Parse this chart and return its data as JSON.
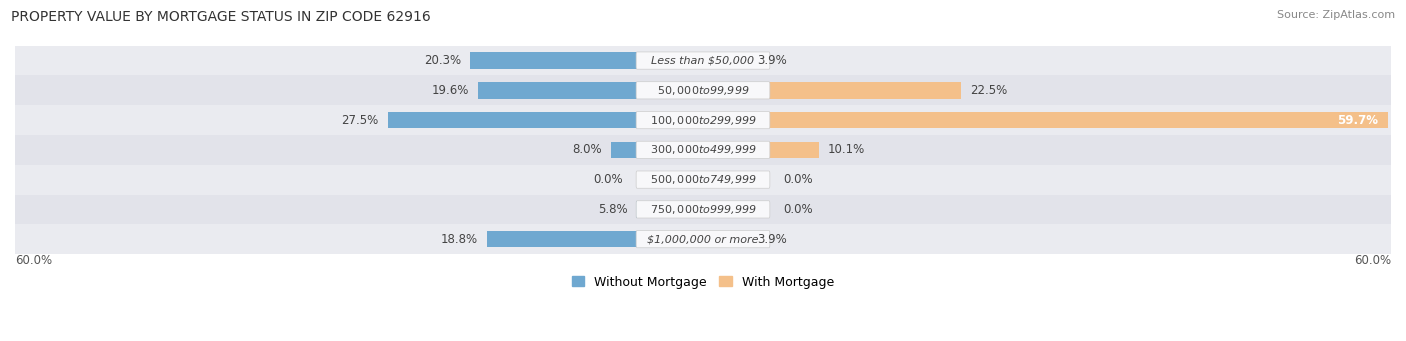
{
  "title": "PROPERTY VALUE BY MORTGAGE STATUS IN ZIP CODE 62916",
  "source": "Source: ZipAtlas.com",
  "categories": [
    "Less than $50,000",
    "$50,000 to $99,999",
    "$100,000 to $299,999",
    "$300,000 to $499,999",
    "$500,000 to $749,999",
    "$750,000 to $999,999",
    "$1,000,000 or more"
  ],
  "without_mortgage": [
    20.3,
    19.6,
    27.5,
    8.0,
    0.0,
    5.8,
    18.8
  ],
  "with_mortgage": [
    3.9,
    22.5,
    59.7,
    10.1,
    0.0,
    0.0,
    3.9
  ],
  "without_mortgage_color": "#6fa8d0",
  "with_mortgage_color": "#f4c08a",
  "axis_limit": 60.0,
  "axis_label_left": "60.0%",
  "axis_label_right": "60.0%",
  "legend_label_without": "Without Mortgage",
  "legend_label_with": "With Mortgage",
  "bar_height": 0.55,
  "row_bg_colors": [
    "#eaebf0",
    "#e2e3ea"
  ],
  "title_fontsize": 10,
  "source_fontsize": 8,
  "label_fontsize": 8.5,
  "category_fontsize": 8,
  "category_bg_color": "#f5f5f8",
  "category_text_color": "#444444"
}
